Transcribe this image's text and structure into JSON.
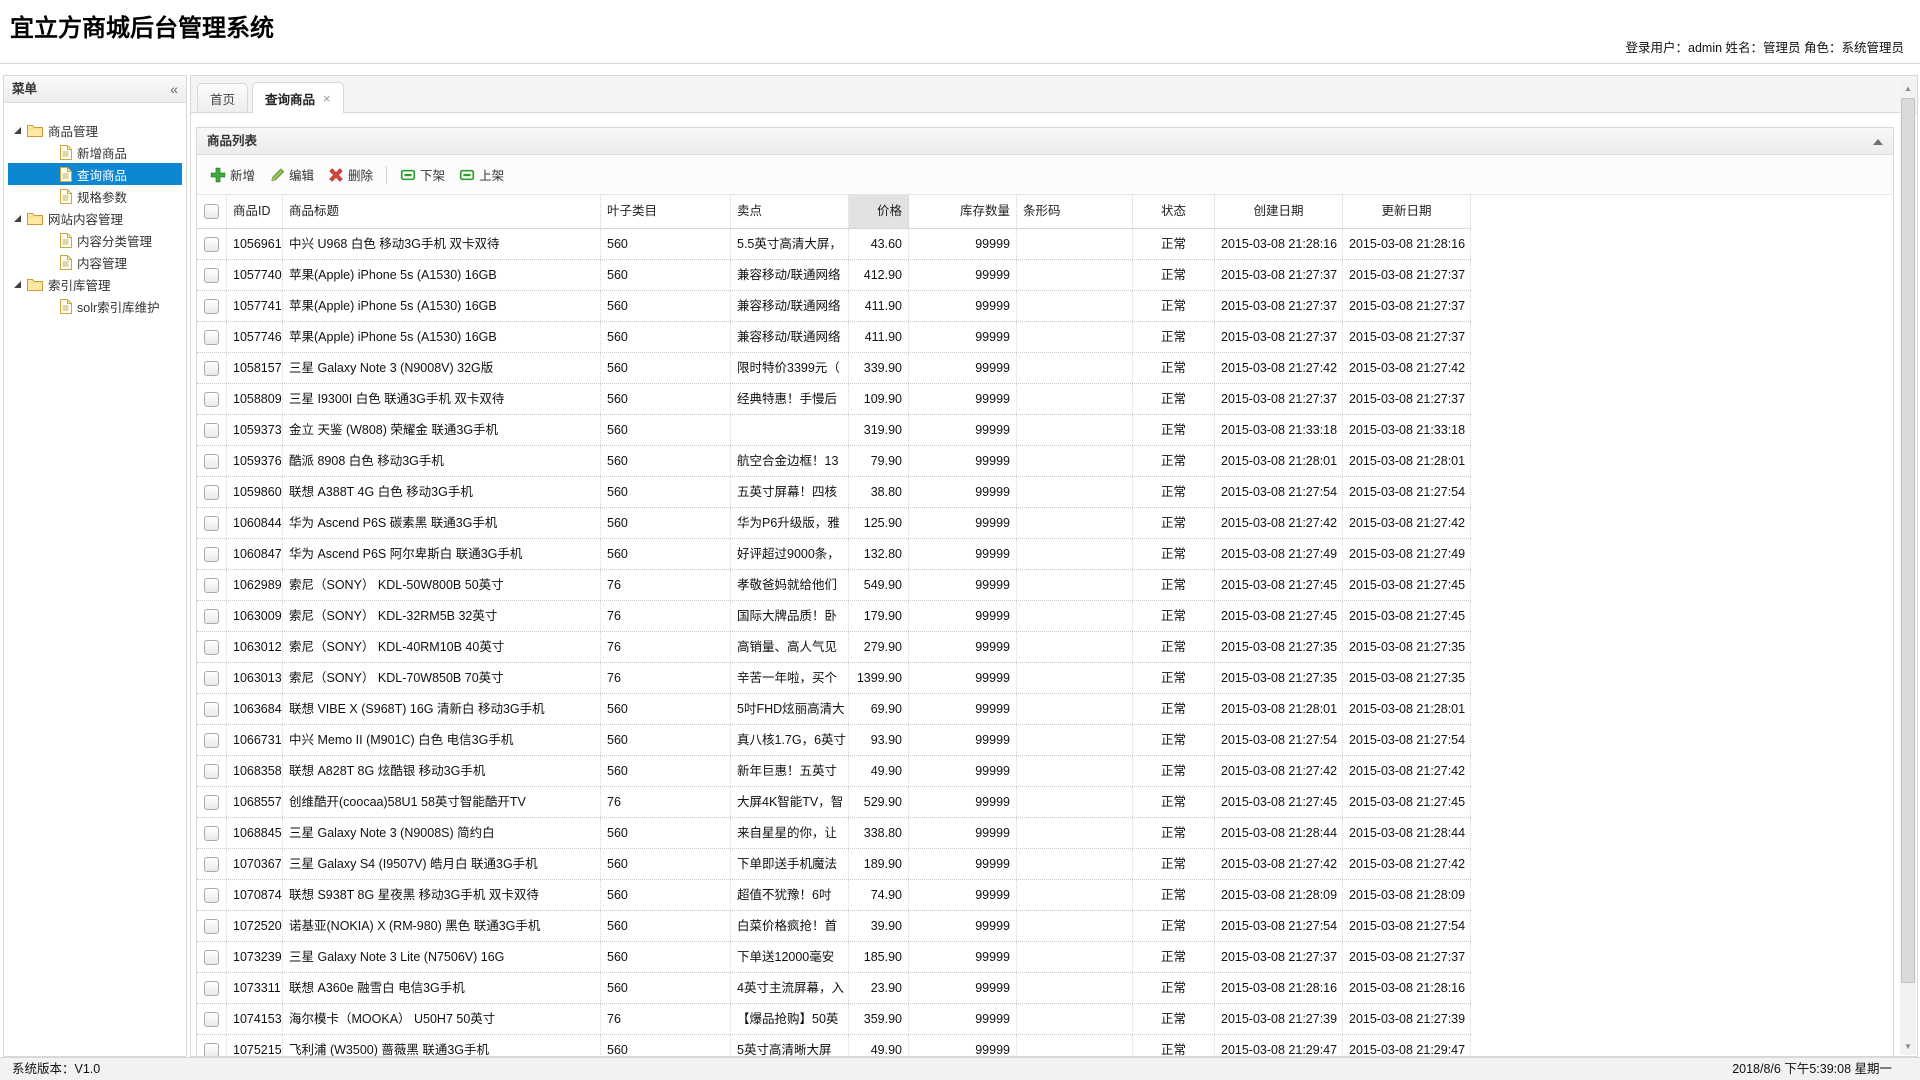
{
  "header": {
    "title": "宜立方商城后台管理系统",
    "user_info": "登录用户：admin 姓名：管理员 角色：系统管理员"
  },
  "sidebar": {
    "title": "菜单",
    "collapse_icon": "«",
    "tree": [
      {
        "label": "商品管理",
        "children": [
          {
            "label": "新增商品"
          },
          {
            "label": "查询商品",
            "selected": true
          },
          {
            "label": "规格参数"
          }
        ]
      },
      {
        "label": "网站内容管理",
        "children": [
          {
            "label": "内容分类管理"
          },
          {
            "label": "内容管理"
          }
        ]
      },
      {
        "label": "索引库管理",
        "children": [
          {
            "label": "solr索引库维护"
          }
        ]
      }
    ]
  },
  "tabs": [
    {
      "label": "首页",
      "active": false,
      "closable": false
    },
    {
      "label": "查询商品",
      "active": true,
      "closable": true
    }
  ],
  "panel": {
    "title": "商品列表"
  },
  "toolbar": {
    "add": "新增",
    "edit": "编辑",
    "remove": "删除",
    "off_shelf": "下架",
    "on_shelf": "上架"
  },
  "grid": {
    "columns": [
      "商品ID",
      "商品标题",
      "叶子类目",
      "卖点",
      "价格",
      "库存数量",
      "条形码",
      "状态",
      "创建日期",
      "更新日期"
    ],
    "rows": [
      {
        "id": "1056961",
        "title": "中兴 U968 白色 移动3G手机 双卡双待",
        "category": "560",
        "sell_point": "5.5英寸高清大屏，",
        "price": "43.60",
        "stock": "99999",
        "barcode": "",
        "status": "正常",
        "created": "2015-03-08 21:28:16",
        "updated": "2015-03-08 21:28:16"
      },
      {
        "id": "1057740",
        "title": "苹果(Apple) iPhone 5s (A1530) 16GB",
        "category": "560",
        "sell_point": "兼容移动/联通网络",
        "price": "412.90",
        "stock": "99999",
        "barcode": "",
        "status": "正常",
        "created": "2015-03-08 21:27:37",
        "updated": "2015-03-08 21:27:37"
      },
      {
        "id": "1057741",
        "title": "苹果(Apple) iPhone 5s (A1530) 16GB",
        "category": "560",
        "sell_point": "兼容移动/联通网络",
        "price": "411.90",
        "stock": "99999",
        "barcode": "",
        "status": "正常",
        "created": "2015-03-08 21:27:37",
        "updated": "2015-03-08 21:27:37"
      },
      {
        "id": "1057746",
        "title": "苹果(Apple) iPhone 5s (A1530) 16GB",
        "category": "560",
        "sell_point": "兼容移动/联通网络",
        "price": "411.90",
        "stock": "99999",
        "barcode": "",
        "status": "正常",
        "created": "2015-03-08 21:27:37",
        "updated": "2015-03-08 21:27:37"
      },
      {
        "id": "1058157",
        "title": "三星 Galaxy Note 3 (N9008V) 32G版",
        "category": "560",
        "sell_point": "限时特价3399元（",
        "price": "339.90",
        "stock": "99999",
        "barcode": "",
        "status": "正常",
        "created": "2015-03-08 21:27:42",
        "updated": "2015-03-08 21:27:42"
      },
      {
        "id": "1058809",
        "title": "三星 I9300I 白色 联通3G手机 双卡双待",
        "category": "560",
        "sell_point": "经典特惠！手慢后",
        "price": "109.90",
        "stock": "99999",
        "barcode": "",
        "status": "正常",
        "created": "2015-03-08 21:27:37",
        "updated": "2015-03-08 21:27:37"
      },
      {
        "id": "1059373",
        "title": "金立 天鉴 (W808) 荣耀金 联通3G手机",
        "category": "560",
        "sell_point": "",
        "price": "319.90",
        "stock": "99999",
        "barcode": "",
        "status": "正常",
        "created": "2015-03-08 21:33:18",
        "updated": "2015-03-08 21:33:18"
      },
      {
        "id": "1059376",
        "title": "酷派 8908 白色 移动3G手机",
        "category": "560",
        "sell_point": "航空合金边框！13",
        "price": "79.90",
        "stock": "99999",
        "barcode": "",
        "status": "正常",
        "created": "2015-03-08 21:28:01",
        "updated": "2015-03-08 21:28:01"
      },
      {
        "id": "1059860",
        "title": "联想 A388T 4G 白色 移动3G手机",
        "category": "560",
        "sell_point": "五英寸屏幕！四核",
        "price": "38.80",
        "stock": "99999",
        "barcode": "",
        "status": "正常",
        "created": "2015-03-08 21:27:54",
        "updated": "2015-03-08 21:27:54"
      },
      {
        "id": "1060844",
        "title": "华为 Ascend P6S 碳素黑 联通3G手机",
        "category": "560",
        "sell_point": "华为P6升级版，雅",
        "price": "125.90",
        "stock": "99999",
        "barcode": "",
        "status": "正常",
        "created": "2015-03-08 21:27:42",
        "updated": "2015-03-08 21:27:42"
      },
      {
        "id": "1060847",
        "title": "华为 Ascend P6S 阿尔卑斯白 联通3G手机",
        "category": "560",
        "sell_point": "好评超过9000条，",
        "price": "132.80",
        "stock": "99999",
        "barcode": "",
        "status": "正常",
        "created": "2015-03-08 21:27:49",
        "updated": "2015-03-08 21:27:49"
      },
      {
        "id": "1062989",
        "title": "索尼（SONY） KDL-50W800B 50英寸",
        "category": "76",
        "sell_point": "孝敬爸妈就给他们",
        "price": "549.90",
        "stock": "99999",
        "barcode": "",
        "status": "正常",
        "created": "2015-03-08 21:27:45",
        "updated": "2015-03-08 21:27:45"
      },
      {
        "id": "1063009",
        "title": "索尼（SONY） KDL-32RM5B 32英寸",
        "category": "76",
        "sell_point": "国际大牌品质！卧",
        "price": "179.90",
        "stock": "99999",
        "barcode": "",
        "status": "正常",
        "created": "2015-03-08 21:27:45",
        "updated": "2015-03-08 21:27:45"
      },
      {
        "id": "1063012",
        "title": "索尼（SONY） KDL-40RM10B 40英寸",
        "category": "76",
        "sell_point": "高销量、高人气见",
        "price": "279.90",
        "stock": "99999",
        "barcode": "",
        "status": "正常",
        "created": "2015-03-08 21:27:35",
        "updated": "2015-03-08 21:27:35"
      },
      {
        "id": "1063013",
        "title": "索尼（SONY） KDL-70W850B 70英寸",
        "category": "76",
        "sell_point": "辛苦一年啦，买个",
        "price": "1399.90",
        "stock": "99999",
        "barcode": "",
        "status": "正常",
        "created": "2015-03-08 21:27:35",
        "updated": "2015-03-08 21:27:35"
      },
      {
        "id": "1063684",
        "title": "联想 VIBE X (S968T) 16G 清新白 移动3G手机",
        "category": "560",
        "sell_point": "5吋FHD炫丽高清大",
        "price": "69.90",
        "stock": "99999",
        "barcode": "",
        "status": "正常",
        "created": "2015-03-08 21:28:01",
        "updated": "2015-03-08 21:28:01"
      },
      {
        "id": "1066731",
        "title": "中兴 Memo II (M901C) 白色 电信3G手机",
        "category": "560",
        "sell_point": "真八核1.7G，6英寸",
        "price": "93.90",
        "stock": "99999",
        "barcode": "",
        "status": "正常",
        "created": "2015-03-08 21:27:54",
        "updated": "2015-03-08 21:27:54"
      },
      {
        "id": "1068358",
        "title": "联想 A828T 8G 炫酷银 移动3G手机",
        "category": "560",
        "sell_point": "新年巨惠！五英寸",
        "price": "49.90",
        "stock": "99999",
        "barcode": "",
        "status": "正常",
        "created": "2015-03-08 21:27:42",
        "updated": "2015-03-08 21:27:42"
      },
      {
        "id": "1068557",
        "title": "创维酷开(coocaa)58U1 58英寸智能酷开TV",
        "category": "76",
        "sell_point": "大屏4K智能TV，智",
        "price": "529.90",
        "stock": "99999",
        "barcode": "",
        "status": "正常",
        "created": "2015-03-08 21:27:45",
        "updated": "2015-03-08 21:27:45"
      },
      {
        "id": "1068845",
        "title": "三星 Galaxy Note 3 (N9008S) 简约白",
        "category": "560",
        "sell_point": "来自星星的你，让",
        "price": "338.80",
        "stock": "99999",
        "barcode": "",
        "status": "正常",
        "created": "2015-03-08 21:28:44",
        "updated": "2015-03-08 21:28:44"
      },
      {
        "id": "1070367",
        "title": "三星 Galaxy S4 (I9507V) 皓月白 联通3G手机",
        "category": "560",
        "sell_point": "下单即送手机魔法",
        "price": "189.90",
        "stock": "99999",
        "barcode": "",
        "status": "正常",
        "created": "2015-03-08 21:27:42",
        "updated": "2015-03-08 21:27:42"
      },
      {
        "id": "1070874",
        "title": "联想 S938T 8G 星夜黑 移动3G手机 双卡双待",
        "category": "560",
        "sell_point": "超值不犹豫！6吋",
        "price": "74.90",
        "stock": "99999",
        "barcode": "",
        "status": "正常",
        "created": "2015-03-08 21:28:09",
        "updated": "2015-03-08 21:28:09"
      },
      {
        "id": "1072520",
        "title": "诺基亚(NOKIA) X (RM-980) 黑色 联通3G手机",
        "category": "560",
        "sell_point": "白菜价格疯抢！首",
        "price": "39.90",
        "stock": "99999",
        "barcode": "",
        "status": "正常",
        "created": "2015-03-08 21:27:54",
        "updated": "2015-03-08 21:27:54"
      },
      {
        "id": "1073239",
        "title": "三星 Galaxy Note 3 Lite (N7506V) 16G",
        "category": "560",
        "sell_point": "下单送12000毫安",
        "price": "185.90",
        "stock": "99999",
        "barcode": "",
        "status": "正常",
        "created": "2015-03-08 21:27:37",
        "updated": "2015-03-08 21:27:37"
      },
      {
        "id": "1073311",
        "title": "联想 A360e 融雪白 电信3G手机",
        "category": "560",
        "sell_point": "4英寸主流屏幕，入",
        "price": "23.90",
        "stock": "99999",
        "barcode": "",
        "status": "正常",
        "created": "2015-03-08 21:28:16",
        "updated": "2015-03-08 21:28:16"
      },
      {
        "id": "1074153",
        "title": "海尔模卡（MOOKA） U50H7 50英寸",
        "category": "76",
        "sell_point": "【爆品抢购】50英",
        "price": "359.90",
        "stock": "99999",
        "barcode": "",
        "status": "正常",
        "created": "2015-03-08 21:27:39",
        "updated": "2015-03-08 21:27:39"
      },
      {
        "id": "1075215",
        "title": "飞利浦 (W3500) 蔷薇黑 联通3G手机",
        "category": "560",
        "sell_point": "5英寸高清晰大屏",
        "price": "49.90",
        "stock": "99999",
        "barcode": "",
        "status": "正常",
        "created": "2015-03-08 21:29:47",
        "updated": "2015-03-08 21:29:47"
      }
    ]
  },
  "status_bar": {
    "version": "系统版本：V1.0",
    "datetime": "2018/8/6 下午5:39:08 星期一"
  }
}
